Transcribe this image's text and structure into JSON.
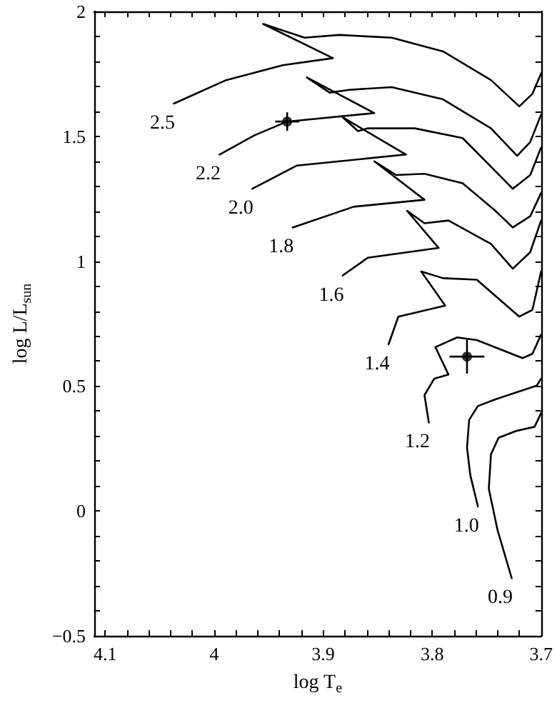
{
  "chart_data": {
    "type": "line",
    "xlabel": "log T$_{e}$",
    "ylabel": "log L/L$_{sun}$",
    "xlim": [
      4.11,
      3.7
    ],
    "xticks": [
      4.1,
      4,
      3.9,
      3.8,
      3.7
    ],
    "ylim": [
      -0.5,
      2
    ],
    "yticks": [
      -0.5,
      0,
      0.5,
      1,
      1.5,
      2
    ],
    "grid": false,
    "marker": "none",
    "line_style": "solid",
    "series": [
      {
        "name": "2.5",
        "color": "#000000",
        "x": [
          4.037,
          3.989,
          3.937,
          3.891,
          3.955,
          3.917,
          3.885,
          3.837,
          3.79,
          3.746,
          3.72,
          3.708,
          3.7
        ],
        "values": [
          1.631,
          1.725,
          1.785,
          1.813,
          1.95,
          1.895,
          1.906,
          1.895,
          1.84,
          1.725,
          1.62,
          1.67,
          1.752
        ]
      },
      {
        "name": "2.2",
        "color": "#000000",
        "x": [
          3.995,
          3.963,
          3.933,
          3.853,
          3.915,
          3.894,
          3.876,
          3.837,
          3.79,
          3.746,
          3.722,
          3.71,
          3.7
        ],
        "values": [
          1.427,
          1.504,
          1.559,
          1.593,
          1.736,
          1.675,
          1.686,
          1.697,
          1.648,
          1.532,
          1.422,
          1.477,
          1.587
        ]
      },
      {
        "name": "2.0",
        "color": "#000000",
        "x": [
          3.965,
          3.924,
          3.824,
          3.882,
          3.868,
          3.859,
          3.816,
          3.772,
          3.726,
          3.71,
          3.7
        ],
        "values": [
          1.29,
          1.383,
          1.427,
          1.576,
          1.521,
          1.532,
          1.532,
          1.493,
          1.29,
          1.345,
          1.455
        ]
      },
      {
        "name": "1.8",
        "color": "#000000",
        "x": [
          3.928,
          3.872,
          3.807,
          3.853,
          3.833,
          3.807,
          3.772,
          3.742,
          3.726,
          3.71,
          3.7
        ],
        "values": [
          1.135,
          1.218,
          1.246,
          1.4,
          1.345,
          1.35,
          1.312,
          1.202,
          1.135,
          1.18,
          1.273
        ]
      },
      {
        "name": "1.6",
        "color": "#000000",
        "x": [
          3.882,
          3.859,
          3.794,
          3.823,
          3.807,
          3.785,
          3.746,
          3.726,
          3.71,
          3.7
        ],
        "values": [
          0.943,
          1.014,
          1.053,
          1.202,
          1.152,
          1.163,
          1.069,
          0.97,
          1.036,
          1.163
        ]
      },
      {
        "name": "1.4",
        "color": "#000000",
        "x": [
          3.84,
          3.831,
          3.788,
          3.81,
          3.79,
          3.759,
          3.72,
          3.708,
          3.7
        ],
        "values": [
          0.667,
          0.778,
          0.822,
          0.959,
          0.932,
          0.926,
          0.778,
          0.805,
          0.959
        ]
      },
      {
        "name": "1.2",
        "color": "#000000",
        "x": [
          3.803,
          3.807,
          3.798,
          3.785,
          3.797,
          3.777,
          3.759,
          3.717,
          3.708,
          3.7
        ],
        "values": [
          0.354,
          0.464,
          0.53,
          0.546,
          0.656,
          0.695,
          0.684,
          0.612,
          0.629,
          0.706
        ]
      },
      {
        "name": "1.0",
        "color": "#000000",
        "x": [
          3.758,
          3.765,
          3.768,
          3.766,
          3.758,
          3.742,
          3.704,
          3.7
        ],
        "values": [
          0.018,
          0.144,
          0.254,
          0.365,
          0.42,
          0.447,
          0.502,
          0.53
        ]
      },
      {
        "name": "0.9",
        "color": "#000000",
        "x": [
          3.727,
          3.74,
          3.748,
          3.746,
          3.739,
          3.723,
          3.706,
          3.7
        ],
        "values": [
          -0.269,
          -0.076,
          0.089,
          0.227,
          0.293,
          0.32,
          0.337,
          0.392
        ]
      },
      {
        "type": "scatter",
        "marker": "circle",
        "color": "#000000",
        "x": [
          3.933
        ],
        "values": [
          1.559
        ],
        "errors": [
          0.037
        ],
        "xerrors": [
          0.011
        ]
      },
      {
        "type": "scatter",
        "marker": "circle",
        "color": "#000000",
        "x": [
          3.768
        ],
        "values": [
          0.618
        ],
        "errors": [
          0.068
        ],
        "xerrors": [
          0.016
        ]
      }
    ]
  }
}
